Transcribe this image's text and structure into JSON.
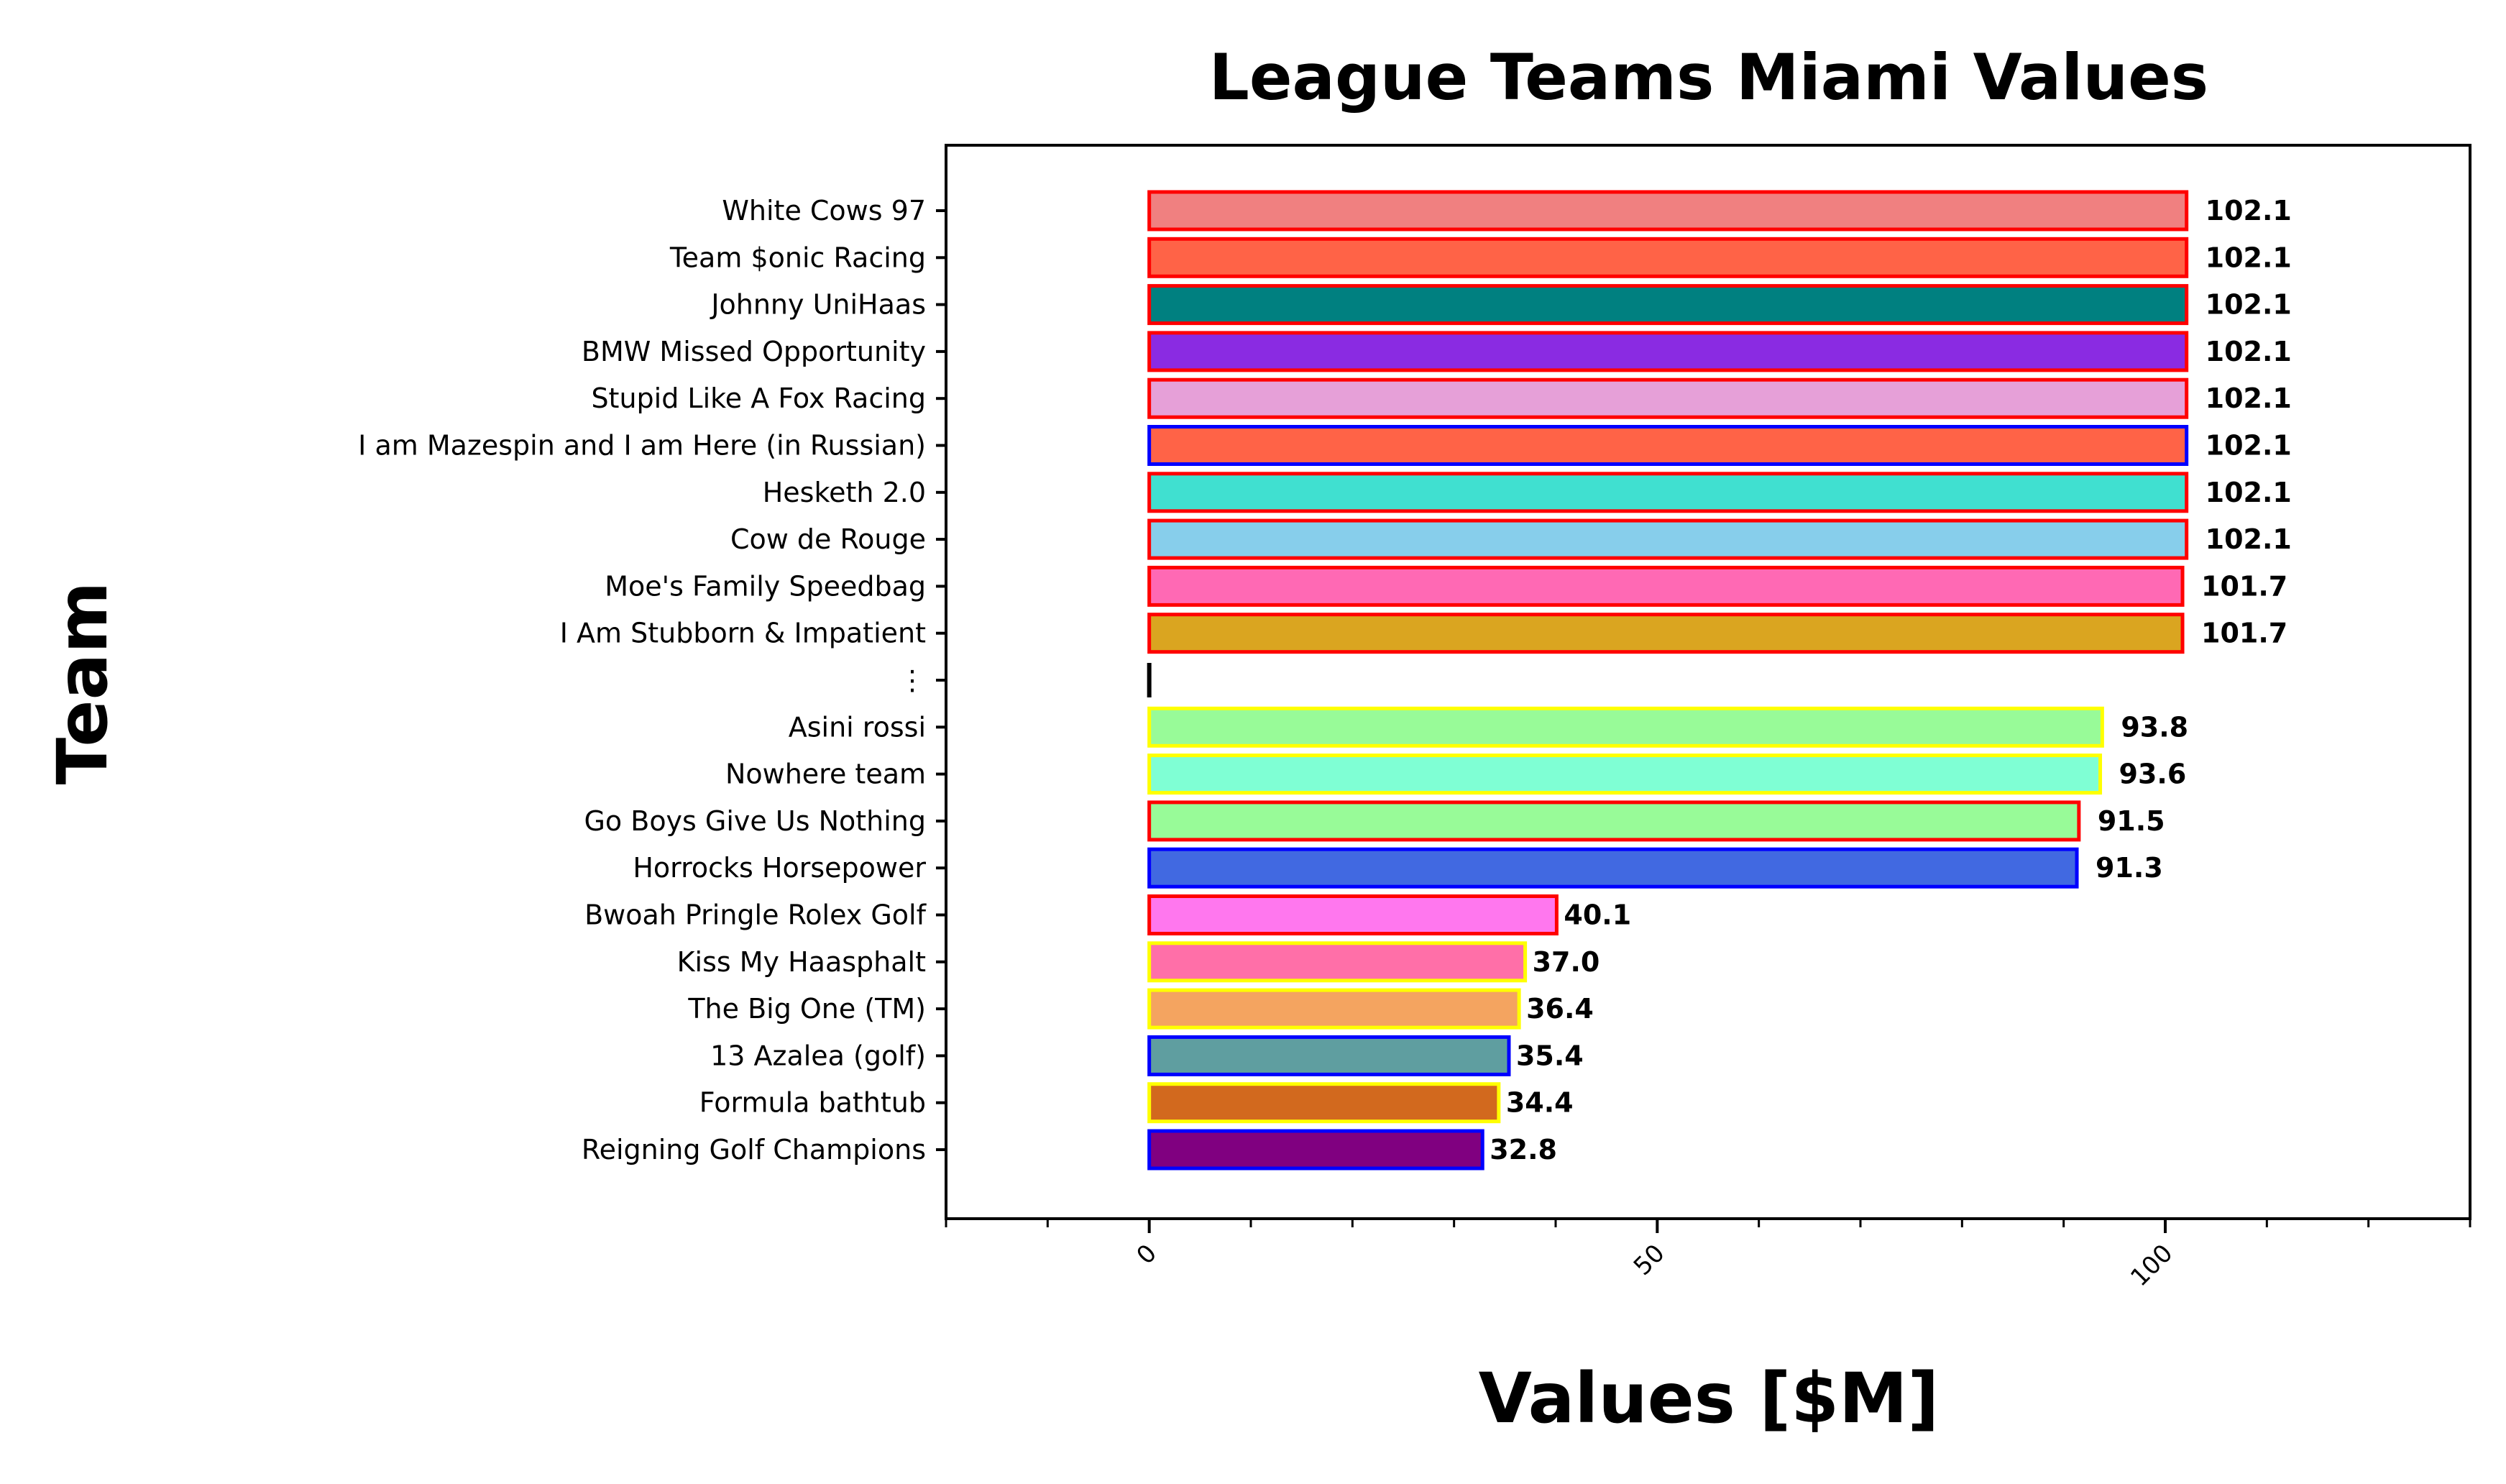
{
  "chart_data": {
    "type": "bar",
    "orientation": "horizontal",
    "title": "League Teams Miami Values",
    "xlabel": "Values [$M]",
    "ylabel": "Team",
    "xlim": [
      -20,
      130
    ],
    "xticks": [
      0,
      50,
      100
    ],
    "xtick_labels": [
      "0",
      "50",
      "100"
    ],
    "grid": false,
    "legend": "none",
    "bars": [
      {
        "team": "White Cows 97",
        "value": 102.1,
        "label": "102.1",
        "fill": "#f08080",
        "edge": "#ff0000"
      },
      {
        "team": "Team $onic Racing",
        "value": 102.1,
        "label": "102.1",
        "fill": "#ff6347",
        "edge": "#ff0000"
      },
      {
        "team": "Johnny UniHaas",
        "value": 102.1,
        "label": "102.1",
        "fill": "#008080",
        "edge": "#ff0000"
      },
      {
        "team": "BMW Missed Opportunity",
        "value": 102.1,
        "label": "102.1",
        "fill": "#8a2be2",
        "edge": "#ff0000"
      },
      {
        "team": "Stupid Like A Fox Racing",
        "value": 102.1,
        "label": "102.1",
        "fill": "#e6a0d8",
        "edge": "#ff0000"
      },
      {
        "team": "I am Mazespin and I am Here (in Russian)",
        "value": 102.1,
        "label": "102.1",
        "fill": "#ff6347",
        "edge": "#0000ff"
      },
      {
        "team": "Hesketh 2.0",
        "value": 102.1,
        "label": "102.1",
        "fill": "#40e0d0",
        "edge": "#ff0000"
      },
      {
        "team": "Cow de Rouge",
        "value": 102.1,
        "label": "102.1",
        "fill": "#87ceeb",
        "edge": "#ff0000"
      },
      {
        "team": "Moe's Family Speedbag",
        "value": 101.7,
        "label": "101.7",
        "fill": "#ff69b4",
        "edge": "#ff0000"
      },
      {
        "team": "I Am Stubborn & Impatient",
        "value": 101.7,
        "label": "101.7",
        "fill": "#daa520",
        "edge": "#ff0000"
      },
      {
        "team": "⋮",
        "value": 0,
        "label": "",
        "fill": "#000000",
        "edge": "#000000",
        "separator": true
      },
      {
        "team": "Asini rossi",
        "value": 93.8,
        "label": "93.8",
        "fill": "#98fb98",
        "edge": "#ffff00"
      },
      {
        "team": "Nowhere team",
        "value": 93.6,
        "label": "93.6",
        "fill": "#7fffd4",
        "edge": "#ffff00"
      },
      {
        "team": "Go Boys Give Us Nothing",
        "value": 91.5,
        "label": "91.5",
        "fill": "#98fb98",
        "edge": "#ff0000"
      },
      {
        "team": "Horrocks Horsepower",
        "value": 91.3,
        "label": "91.3",
        "fill": "#4169e1",
        "edge": "#0000ff"
      },
      {
        "team": "Bwoah Pringle Rolex Golf",
        "value": 40.1,
        "label": "40.1",
        "fill": "#ff77ee",
        "edge": "#ff0000"
      },
      {
        "team": "Kiss My Haasphalt",
        "value": 37.0,
        "label": "37.0",
        "fill": "#ff6fa8",
        "edge": "#ffff00"
      },
      {
        "team": "The Big One (TM)",
        "value": 36.4,
        "label": "36.4",
        "fill": "#f4a460",
        "edge": "#ffff00"
      },
      {
        "team": "13 Azalea (golf)",
        "value": 35.4,
        "label": "35.4",
        "fill": "#5f9ea0",
        "edge": "#0000ff"
      },
      {
        "team": "Formula bathtub",
        "value": 34.4,
        "label": "34.4",
        "fill": "#d2691e",
        "edge": "#ffff00"
      },
      {
        "team": "Reigning Golf Champions",
        "value": 32.8,
        "label": "32.8",
        "fill": "#800080",
        "edge": "#0000ff"
      }
    ]
  }
}
